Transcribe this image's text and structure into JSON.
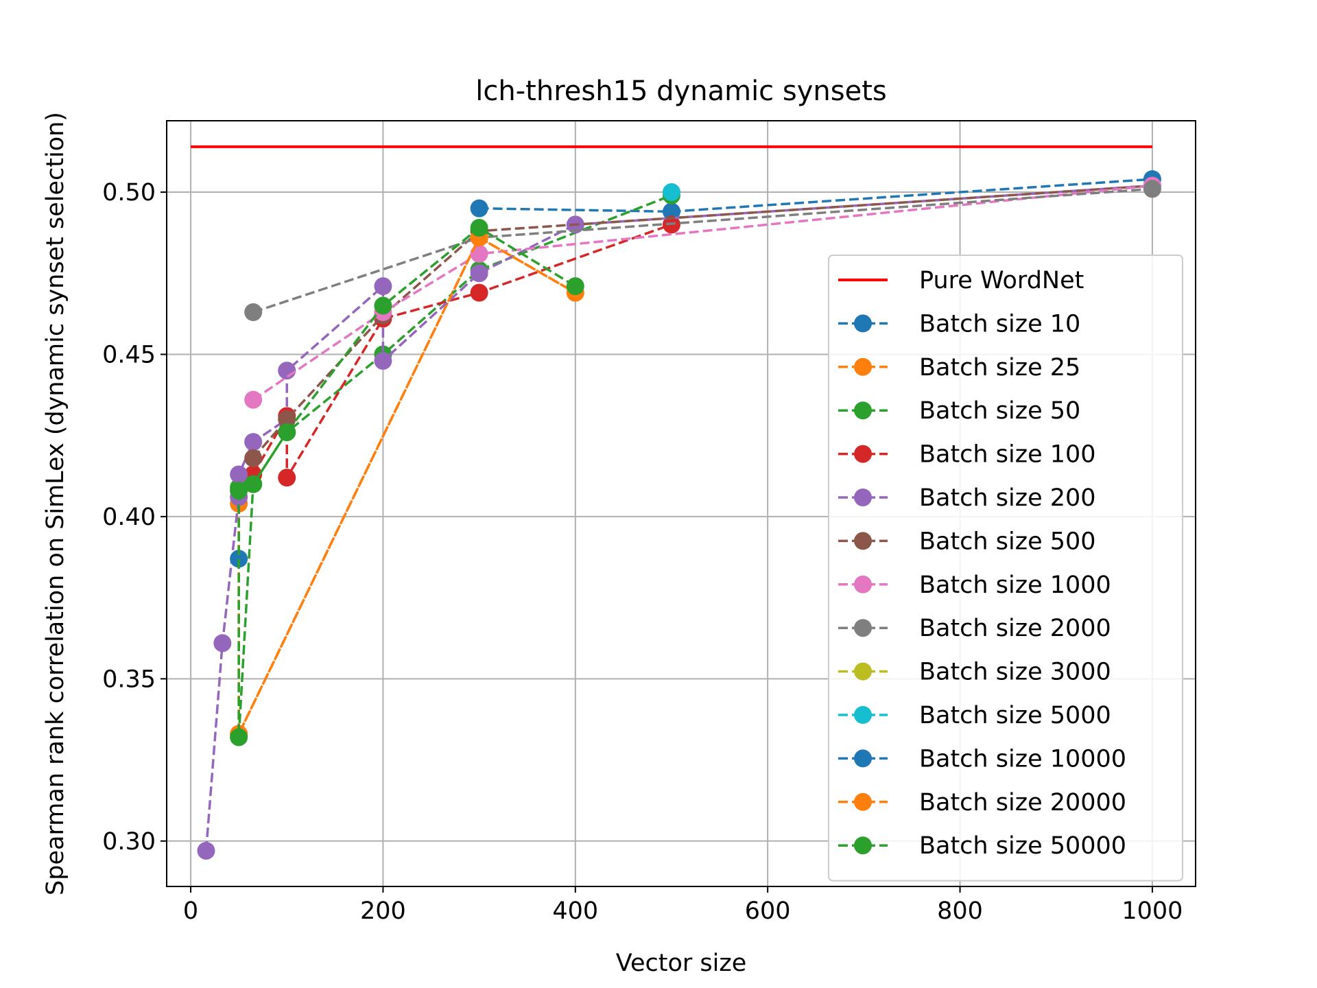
{
  "chart_data": {
    "type": "line",
    "title": "lch-thresh15 dynamic synsets",
    "xlabel": "Vector size",
    "ylabel": "Spearman rank correlation on SimLex (dynamic synset selection)",
    "xlim": [
      -25,
      1045
    ],
    "ylim": [
      0.286,
      0.522
    ],
    "xticks": [
      0,
      200,
      400,
      600,
      800,
      1000
    ],
    "xtick_labels": [
      "0",
      "200",
      "400",
      "600",
      "800",
      "1000"
    ],
    "yticks": [
      0.3,
      0.35,
      0.4,
      0.45,
      0.5
    ],
    "ytick_labels": [
      "0.30",
      "0.35",
      "0.40",
      "0.45",
      "0.50"
    ],
    "grid": true,
    "legend_position": "lower-right",
    "series": [
      {
        "name": "Pure WordNet",
        "color": "#ff0000",
        "style": "solid",
        "marker": false,
        "x": [
          0,
          1000
        ],
        "y": [
          0.514,
          0.514
        ]
      },
      {
        "name": "Batch size 10",
        "color": "#1f77b4",
        "style": "dashed",
        "marker": true,
        "x": [
          300,
          500,
          1000
        ],
        "y": [
          0.495,
          0.494,
          0.504
        ]
      },
      {
        "name": "Batch size 25",
        "color": "#ff7f0e",
        "style": "dashed",
        "marker": true,
        "x": [
          50,
          50,
          300,
          400
        ],
        "y": [
          0.404,
          0.333,
          0.486,
          0.469
        ]
      },
      {
        "name": "Batch size 50",
        "color": "#2ca02c",
        "style": "dashed",
        "marker": true,
        "x": [
          50,
          65,
          100,
          200,
          300,
          500
        ],
        "y": [
          0.409,
          0.41,
          0.426,
          0.45,
          0.476,
          0.499
        ]
      },
      {
        "name": "Batch size 100",
        "color": "#d62728",
        "style": "dashed",
        "marker": true,
        "x": [
          65,
          100,
          100,
          200,
          300,
          500
        ],
        "y": [
          0.413,
          0.431,
          0.412,
          0.461,
          0.469,
          0.49
        ]
      },
      {
        "name": "Batch size 200",
        "color": "#9467bd",
        "style": "dashed",
        "marker": true,
        "x": [
          16,
          33,
          50,
          50,
          65,
          100,
          100,
          200,
          200,
          300,
          400,
          1000
        ],
        "y": [
          0.297,
          0.361,
          0.406,
          0.413,
          0.423,
          0.43,
          0.445,
          0.471,
          0.448,
          0.475,
          0.49,
          0.502
        ]
      },
      {
        "name": "Batch size 500",
        "color": "#8c564b",
        "style": "dashed",
        "marker": true,
        "x": [
          65,
          100,
          200,
          300,
          1000
        ],
        "y": [
          0.418,
          0.43,
          0.462,
          0.488,
          0.502
        ]
      },
      {
        "name": "Batch size 1000",
        "color": "#e377c2",
        "style": "dashed",
        "marker": true,
        "x": [
          65,
          200,
          300,
          1000
        ],
        "y": [
          0.436,
          0.463,
          0.481,
          0.502
        ]
      },
      {
        "name": "Batch size 2000",
        "color": "#7f7f7f",
        "style": "dashed",
        "marker": true,
        "x": [
          65,
          300,
          1000
        ],
        "y": [
          0.463,
          0.486,
          0.501
        ]
      },
      {
        "name": "Batch size 3000",
        "color": "#bcbd22",
        "style": "dashed",
        "marker": true,
        "x": [],
        "y": []
      },
      {
        "name": "Batch size 5000",
        "color": "#17becf",
        "style": "dashed",
        "marker": true,
        "x": [
          500
        ],
        "y": [
          0.5
        ]
      },
      {
        "name": "Batch size 10000",
        "color": "#1f77b4",
        "style": "dashed",
        "marker": true,
        "x": [
          50
        ],
        "y": [
          0.387
        ]
      },
      {
        "name": "Batch size 20000",
        "color": "#ff7f0e",
        "style": "dashed",
        "marker": true,
        "x": [
          50,
          300,
          400
        ],
        "y": [
          0.333,
          0.486,
          0.469
        ]
      },
      {
        "name": "Batch size 50000",
        "color": "#2ca02c",
        "style": "dashed",
        "marker": true,
        "x": [
          50,
          50,
          65,
          100,
          200,
          300,
          400
        ],
        "y": [
          0.408,
          0.332,
          0.41,
          0.426,
          0.465,
          0.489,
          0.471
        ]
      }
    ]
  }
}
